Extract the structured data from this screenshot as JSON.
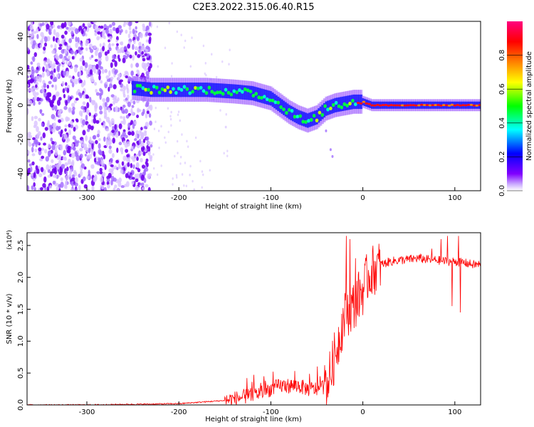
{
  "figure": {
    "title": "C2E3.2022.315.06.40.R15"
  },
  "chart_data": [
    {
      "type": "heatmap",
      "xlabel": "Height of straight line (km)",
      "ylabel": "Frequency (Hz)",
      "xlim": [
        -365,
        128
      ],
      "ylim": [
        -50,
        49
      ],
      "xticks": [
        -300,
        -200,
        -100,
        0,
        100
      ],
      "yticks": [
        -40,
        -20,
        0,
        20,
        40
      ],
      "colorbar": {
        "label": "Normalized spectral amplitude",
        "range": [
          0,
          1
        ],
        "ticks": [
          0.0,
          0.2,
          0.4,
          0.6,
          0.8
        ],
        "colormap": "rainbow (purple-blue-cyan-green-yellow-red-magenta)",
        "colors": [
          "#ffffff",
          "#8000ff",
          "#0000ff",
          "#00ffff",
          "#00ff00",
          "#ffff00",
          "#ff8000",
          "#ff0000",
          "#ff0080"
        ]
      },
      "ridge": {
        "description": "frequency of peak spectral amplitude",
        "x": [
          -250,
          -230,
          -200,
          -170,
          -140,
          -120,
          -100,
          -90,
          -80,
          -70,
          -60,
          -50,
          -40,
          -30,
          -20,
          -10,
          0,
          10,
          50,
          80,
          90,
          100,
          128
        ],
        "y": [
          10,
          9,
          9,
          9,
          8,
          7,
          4,
          0,
          -4,
          -7,
          -9,
          -7,
          -2,
          0,
          1,
          2,
          2,
          0,
          0,
          0,
          0,
          0,
          0
        ]
      },
      "noise_region": {
        "x": [
          -365,
          -230
        ],
        "y": [
          -50,
          49
        ]
      }
    },
    {
      "type": "line",
      "xlabel": "Height of straight line (km)",
      "ylabel": "SNR (10 * v/v)",
      "y_multiplier": "(x10⁴)",
      "xlim": [
        -365,
        128
      ],
      "ylim": [
        0,
        2.7
      ],
      "xticks": [
        -300,
        -200,
        -100,
        0,
        100
      ],
      "yticks": [
        0.0,
        0.5,
        1.0,
        1.5,
        2.0,
        2.5
      ],
      "line_color": "#ff0000",
      "series": [
        {
          "x": [
            -365,
            -300,
            -250,
            -200,
            -150,
            -120,
            -110,
            -100,
            -90,
            -80,
            -70,
            -60,
            -50,
            -40,
            -35,
            -30,
            -25,
            -20,
            -15,
            -10,
            -5,
            0,
            5,
            10,
            20,
            30,
            40,
            50,
            60,
            70,
            80,
            90,
            100,
            110,
            120,
            128
          ],
          "y": [
            0.0,
            0.0,
            0.01,
            0.02,
            0.07,
            0.15,
            0.2,
            0.25,
            0.3,
            0.3,
            0.3,
            0.25,
            0.25,
            0.3,
            0.5,
            0.8,
            1.1,
            1.4,
            1.5,
            1.55,
            1.7,
            1.8,
            2.0,
            2.1,
            2.2,
            2.25,
            2.27,
            2.28,
            2.3,
            2.28,
            2.27,
            2.25,
            2.25,
            2.23,
            2.2,
            2.2
          ]
        }
      ],
      "spikes": [
        {
          "x": -18,
          "y": 2.65
        },
        {
          "x": -14,
          "y": 2.6
        },
        {
          "x": -8,
          "y": 2.3
        },
        {
          "x": 75,
          "y": 2.45
        },
        {
          "x": 85,
          "y": 2.6
        },
        {
          "x": 92,
          "y": 2.65
        },
        {
          "x": 97,
          "y": 1.55
        },
        {
          "x": 104,
          "y": 2.65
        },
        {
          "x": 106,
          "y": 1.45
        }
      ]
    }
  ]
}
